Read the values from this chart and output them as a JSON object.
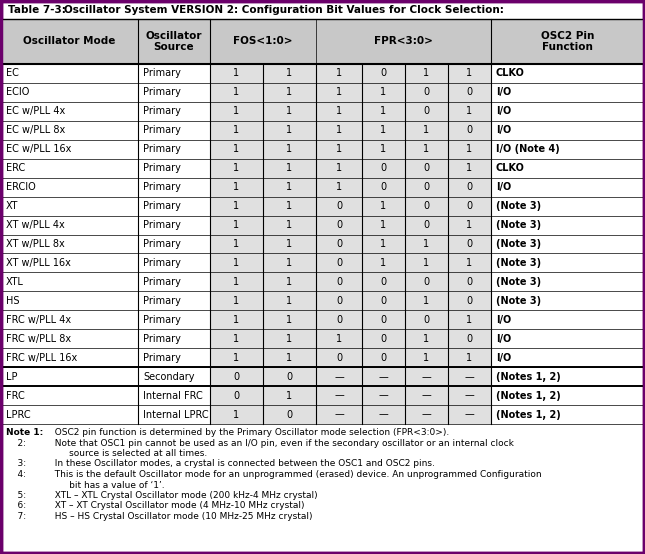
{
  "title_bold": "Table 7-3:",
  "title_normal": "      Oscillator System VERSION 2: Configuration Bit Values for Clock Selection:",
  "border_color": "#6B006B",
  "header_bg": "#C8C8C8",
  "shaded_bg": "#E0E0E0",
  "rows": [
    [
      "EC",
      "Primary",
      "1",
      "1",
      "1",
      "0",
      "1",
      "1",
      "CLKO",
      false
    ],
    [
      "ECIO",
      "Primary",
      "1",
      "1",
      "1",
      "1",
      "0",
      "0",
      "I/O",
      false
    ],
    [
      "EC w/PLL 4x",
      "Primary",
      "1",
      "1",
      "1",
      "1",
      "0",
      "1",
      "I/O",
      false
    ],
    [
      "EC w/PLL 8x",
      "Primary",
      "1",
      "1",
      "1",
      "1",
      "1",
      "0",
      "I/O",
      false
    ],
    [
      "EC w/PLL 16x",
      "Primary",
      "1",
      "1",
      "1",
      "1",
      "1",
      "1",
      "I/O (Note 4)",
      false
    ],
    [
      "ERC",
      "Primary",
      "1",
      "1",
      "1",
      "0",
      "0",
      "1",
      "CLKO",
      false
    ],
    [
      "ERCIO",
      "Primary",
      "1",
      "1",
      "1",
      "0",
      "0",
      "0",
      "I/O",
      false
    ],
    [
      "XT",
      "Primary",
      "1",
      "1",
      "0",
      "1",
      "0",
      "0",
      "(Note 3)",
      false
    ],
    [
      "XT w/PLL 4x",
      "Primary",
      "1",
      "1",
      "0",
      "1",
      "0",
      "1",
      "(Note 3)",
      false
    ],
    [
      "XT w/PLL 8x",
      "Primary",
      "1",
      "1",
      "0",
      "1",
      "1",
      "0",
      "(Note 3)",
      false
    ],
    [
      "XT w/PLL 16x",
      "Primary",
      "1",
      "1",
      "0",
      "1",
      "1",
      "1",
      "(Note 3)",
      false
    ],
    [
      "XTL",
      "Primary",
      "1",
      "1",
      "0",
      "0",
      "0",
      "0",
      "(Note 3)",
      false
    ],
    [
      "HS",
      "Primary",
      "1",
      "1",
      "0",
      "0",
      "1",
      "0",
      "(Note 3)",
      false
    ],
    [
      "FRC w/PLL 4x",
      "Primary",
      "1",
      "1",
      "0",
      "0",
      "0",
      "1",
      "I/O",
      false
    ],
    [
      "FRC w/PLL 8x",
      "Primary",
      "1",
      "1",
      "1",
      "0",
      "1",
      "0",
      "I/O",
      false
    ],
    [
      "FRC w/PLL 16x",
      "Primary",
      "1",
      "1",
      "0",
      "0",
      "1",
      "1",
      "I/O",
      false
    ],
    [
      "LP",
      "Secondary",
      "0",
      "0",
      "—",
      "—",
      "—",
      "—",
      "(Notes 1, 2)",
      true
    ],
    [
      "FRC",
      "Internal FRC",
      "0",
      "1",
      "—",
      "—",
      "—",
      "—",
      "(Notes 1, 2)",
      true
    ],
    [
      "LPRC",
      "Internal LPRC",
      "1",
      "0",
      "—",
      "—",
      "—",
      "—",
      "(Notes 1, 2)",
      true
    ]
  ],
  "note_lines": [
    {
      "prefix": "Note 1:",
      "prefix_bold": true,
      "indent": 0,
      "text": "  OSC2 pin function is determined by the Primary Oscillator mode selection (FPR<3:0>)."
    },
    {
      "prefix": "    2:",
      "prefix_bold": false,
      "indent": 0,
      "text": "  Note that OSC1 pin cannot be used as an I/O pin, even if the secondary oscillator or an internal clock"
    },
    {
      "prefix": "",
      "prefix_bold": false,
      "indent": 1,
      "text": "       source is selected at all times."
    },
    {
      "prefix": "    3:",
      "prefix_bold": false,
      "indent": 0,
      "text": "  In these Oscillator modes, a crystal is connected between the OSC1 and OSC2 pins."
    },
    {
      "prefix": "    4:",
      "prefix_bold": false,
      "indent": 0,
      "text": "  This is the default Oscillator mode for an unprogrammed (erased) device. An unprogrammed Configuration"
    },
    {
      "prefix": "",
      "prefix_bold": false,
      "indent": 1,
      "text": "       bit has a value of ‘1’."
    },
    {
      "prefix": "    5:",
      "prefix_bold": false,
      "indent": 0,
      "text": "  XTL – XTL Crystal Oscillator mode (200 kHz-4 MHz crystal)"
    },
    {
      "prefix": "    6:",
      "prefix_bold": false,
      "indent": 0,
      "text": "  XT – XT Crystal Oscillator mode (4 MHz-10 MHz crystal)"
    },
    {
      "prefix": "    7:",
      "prefix_bold": false,
      "indent": 0,
      "text": "  HS – HS Crystal Oscillator mode (10 MHz-25 MHz crystal)"
    }
  ]
}
